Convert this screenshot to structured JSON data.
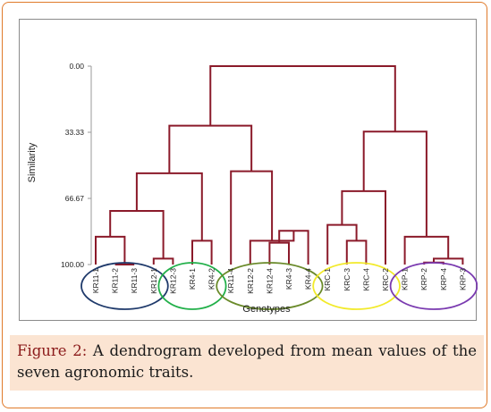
{
  "chart_data": {
    "type": "dendrogram",
    "ylabel": "Similarity",
    "xlabel": "Genotypes",
    "yticks": [
      "0.00",
      "33.33",
      "66.67",
      "100.00"
    ],
    "ylim": [
      0,
      100
    ],
    "line_color": "#8b1a2a",
    "leaves": [
      "KR11-1",
      "KR11-2",
      "KR11-3",
      "KR12-1",
      "KR12-3",
      "KR4-1",
      "KR4-2",
      "KR11-4",
      "KR12-2",
      "KR12-4",
      "KR4-3",
      "KR4-4",
      "KRC-1",
      "KRC-3",
      "KRC-4",
      "KRC-2",
      "KRP-1",
      "KRP-2",
      "KRP-4",
      "KRP-3"
    ],
    "merges": [
      {
        "a": "KR11-2",
        "b": "KR11-3",
        "similarity": 100
      },
      {
        "a": 0,
        "b": "KR11-1",
        "similarity": 86
      },
      {
        "a": "KR12-1",
        "b": "KR12-3",
        "similarity": 97
      },
      {
        "a": 1,
        "b": 2,
        "similarity": 73
      },
      {
        "a": "KR4-1",
        "b": "KR4-2",
        "similarity": 88
      },
      {
        "a": 3,
        "b": 4,
        "similarity": 54
      },
      {
        "a": "KR12-4",
        "b": "KR4-3",
        "similarity": 89
      },
      {
        "a": 6,
        "b": "KR4-4",
        "similarity": 83
      },
      {
        "a": "KR12-2",
        "b": 7,
        "similarity": 88
      },
      {
        "a": "KR11-4",
        "b": 8,
        "similarity": 53
      },
      {
        "a": 5,
        "b": 9,
        "similarity": 30
      },
      {
        "a": "KRC-3",
        "b": "KRC-4",
        "similarity": 88
      },
      {
        "a": "KRC-1",
        "b": 11,
        "similarity": 80
      },
      {
        "a": 12,
        "b": "KRC-2",
        "similarity": 63
      },
      {
        "a": "KRP-2",
        "b": "KRP-4",
        "similarity": 99
      },
      {
        "a": 14,
        "b": "KRP-3",
        "similarity": 97
      },
      {
        "a": "KRP-1",
        "b": 15,
        "similarity": 86
      },
      {
        "a": 13,
        "b": 16,
        "similarity": 33
      },
      {
        "a": 10,
        "b": 17,
        "similarity": 0
      }
    ],
    "groups": [
      {
        "leaves": [
          "KR11-1",
          "KR11-2",
          "KR11-3",
          "KR12-1"
        ],
        "color": "#1f3a6b"
      },
      {
        "leaves": [
          "KR12-3",
          "KR4-1",
          "KR4-2"
        ],
        "color": "#22b04a"
      },
      {
        "leaves": [
          "KR11-4",
          "KR12-2",
          "KR12-4",
          "KR4-3",
          "KR4-4"
        ],
        "color": "#6a8a2a"
      },
      {
        "leaves": [
          "KRC-1",
          "KRC-3",
          "KRC-4",
          "KRC-2"
        ],
        "color": "#f2ea2a"
      },
      {
        "leaves": [
          "KRP-1",
          "KRP-2",
          "KRP-4",
          "KRP-3"
        ],
        "color": "#7a3ab0"
      }
    ]
  },
  "caption": {
    "label": "Figure 2:",
    "text": " A dendrogram developed from mean values of the seven agronomic traits."
  }
}
